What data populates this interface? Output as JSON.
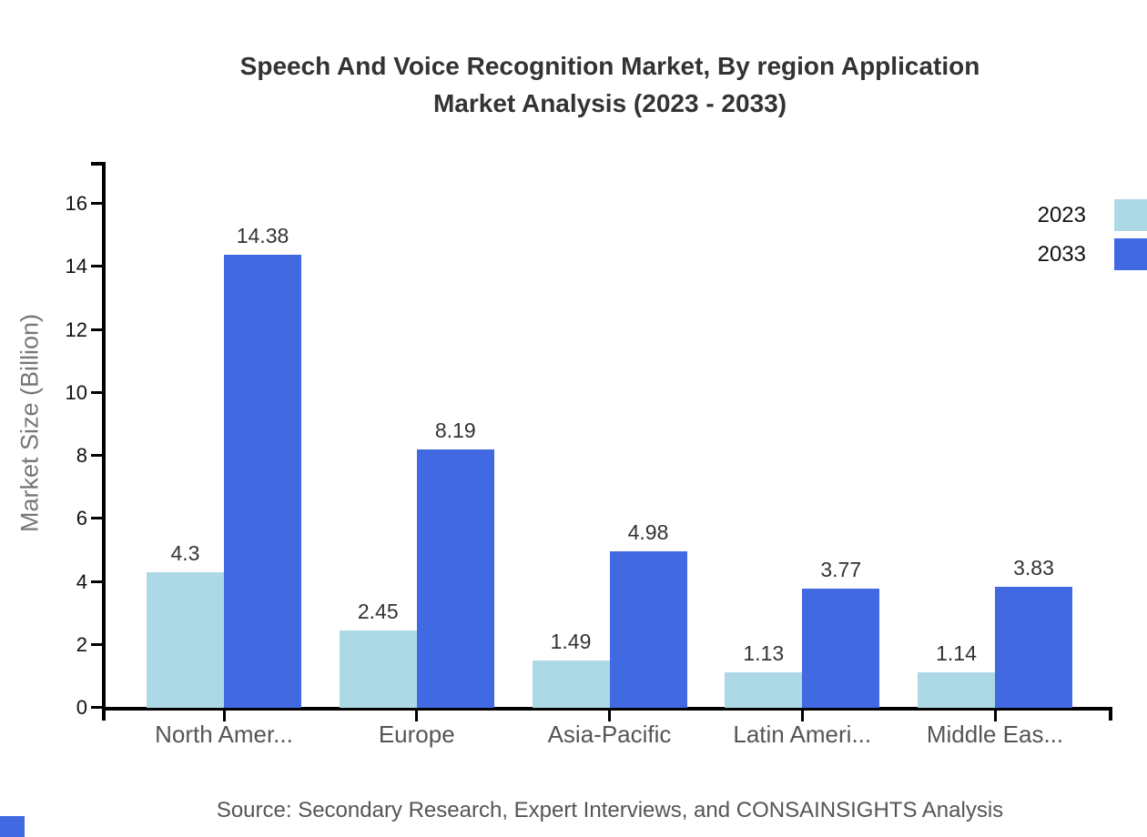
{
  "title_lines": [
    "Speech And Voice Recognition Market, By region Application",
    "Market Analysis (2023 - 2033)"
  ],
  "source": "Source: Secondary Research, Expert Interviews, and CONSAINSIGHTS Analysis",
  "chart_data": {
    "type": "bar",
    "title": "Speech And Voice Recognition Market, By region Application Market Analysis (2023 - 2033)",
    "xlabel": "",
    "ylabel": "Market Size (Billion)",
    "ylim": [
      0,
      16
    ],
    "yticks": [
      0,
      2,
      4,
      6,
      8,
      10,
      12,
      14,
      16
    ],
    "grid": false,
    "legend_position": "top-right",
    "categories": [
      "North Amer...",
      "Europe",
      "Asia-Pacific",
      "Latin Ameri...",
      "Middle Eas..."
    ],
    "series": [
      {
        "name": "2023",
        "color": "#ADD8E6",
        "values": [
          4.3,
          2.45,
          1.49,
          1.13,
          1.14
        ]
      },
      {
        "name": "2033",
        "color": "#4169E1",
        "values": [
          14.38,
          8.19,
          4.98,
          3.77,
          3.83
        ]
      }
    ]
  },
  "colors": {
    "axis": "#000000",
    "title_text": "#333333",
    "tick_text": "#111111",
    "category_text": "#555555",
    "axis_label_text": "#777777",
    "value_label_text": "#333333",
    "source_text": "#555555",
    "corner_square": "#4169E1"
  }
}
